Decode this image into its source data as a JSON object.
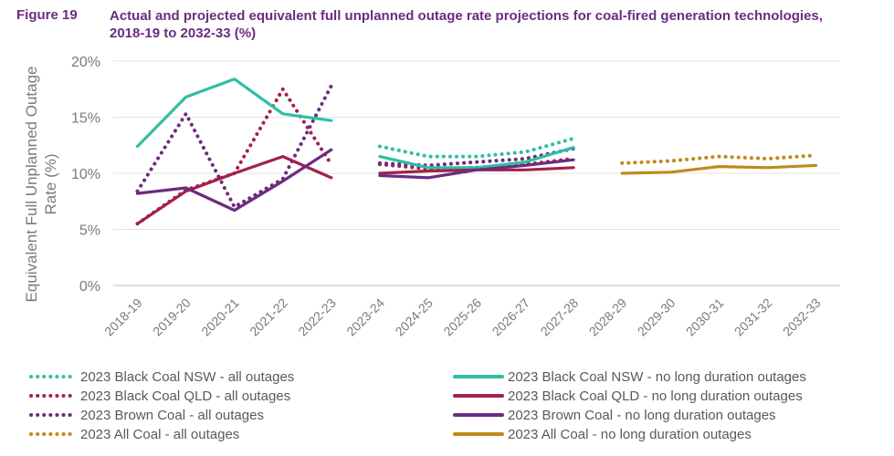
{
  "figure": {
    "number": "Figure 19",
    "title": "Actual and projected equivalent full unplanned outage rate projections for coal-fired generation technologies, 2018-19 to 2032-33 (%)"
  },
  "chart_data": {
    "type": "line",
    "categories": [
      "2018-19",
      "2019-20",
      "2020-21",
      "2021-22",
      "2022-23",
      "2023-24",
      "2024-25",
      "2025-26",
      "2026-27",
      "2027-28",
      "2028-29",
      "2029-30",
      "2030-31",
      "2031-32",
      "2032-33"
    ],
    "ylabel": "Equivalent Full Unplanned Outage Rate (%)",
    "ylim": [
      0,
      20
    ],
    "yticks": [
      0,
      5,
      10,
      15,
      20
    ],
    "ytick_labels": [
      "0%",
      "5%",
      "10%",
      "15%",
      "20%"
    ],
    "grid": "horizontal",
    "legend_position": "bottom",
    "series": [
      {
        "name": "2023 Black Coal NSW - all outages",
        "style": "dotted",
        "color": "#2ebfa5",
        "values": [
          null,
          null,
          null,
          null,
          null,
          12.4,
          11.5,
          11.5,
          11.9,
          13.1,
          null,
          null,
          null,
          null,
          null
        ]
      },
      {
        "name": "2023 Black Coal NSW - no long duration outages",
        "style": "solid",
        "color": "#2ebfa5",
        "values": [
          12.4,
          16.8,
          18.4,
          15.3,
          14.7,
          11.5,
          10.5,
          10.5,
          11.0,
          12.3,
          null,
          null,
          null,
          null,
          null
        ]
      },
      {
        "name": "2023 Black Coal QLD - all outages",
        "style": "dotted",
        "color": "#a3214a",
        "values": [
          5.5,
          8.5,
          10.0,
          17.5,
          10.8,
          10.8,
          10.4,
          10.5,
          10.8,
          11.3,
          null,
          null,
          null,
          null,
          null
        ]
      },
      {
        "name": "2023 Black Coal QLD - no long duration outages",
        "style": "solid",
        "color": "#a3214a",
        "values": [
          5.5,
          8.4,
          10.0,
          11.5,
          9.6,
          10.0,
          10.2,
          10.3,
          10.3,
          10.5,
          null,
          null,
          null,
          null,
          null
        ]
      },
      {
        "name": "2023 Brown Coal - all outages",
        "style": "dotted",
        "color": "#6b2c7e",
        "values": [
          8.4,
          15.3,
          7.0,
          9.5,
          17.8,
          10.9,
          10.7,
          11.0,
          11.3,
          12.2,
          null,
          null,
          null,
          null,
          null
        ]
      },
      {
        "name": "2023 Brown Coal - no long duration outages",
        "style": "solid",
        "color": "#6b2c7e",
        "values": [
          8.2,
          8.7,
          6.7,
          9.3,
          12.1,
          9.8,
          9.6,
          10.3,
          10.7,
          11.2,
          null,
          null,
          null,
          null,
          null
        ]
      },
      {
        "name": "2023 All Coal - all outages",
        "style": "dotted",
        "color": "#bf8a1b",
        "values": [
          null,
          null,
          null,
          null,
          null,
          null,
          null,
          null,
          null,
          null,
          10.9,
          11.1,
          11.5,
          11.3,
          11.6
        ]
      },
      {
        "name": "2023 All Coal - no long duration outages",
        "style": "solid",
        "color": "#bf8a1b",
        "values": [
          null,
          null,
          null,
          null,
          null,
          null,
          null,
          null,
          null,
          null,
          10.0,
          10.1,
          10.6,
          10.5,
          10.7
        ]
      }
    ]
  }
}
